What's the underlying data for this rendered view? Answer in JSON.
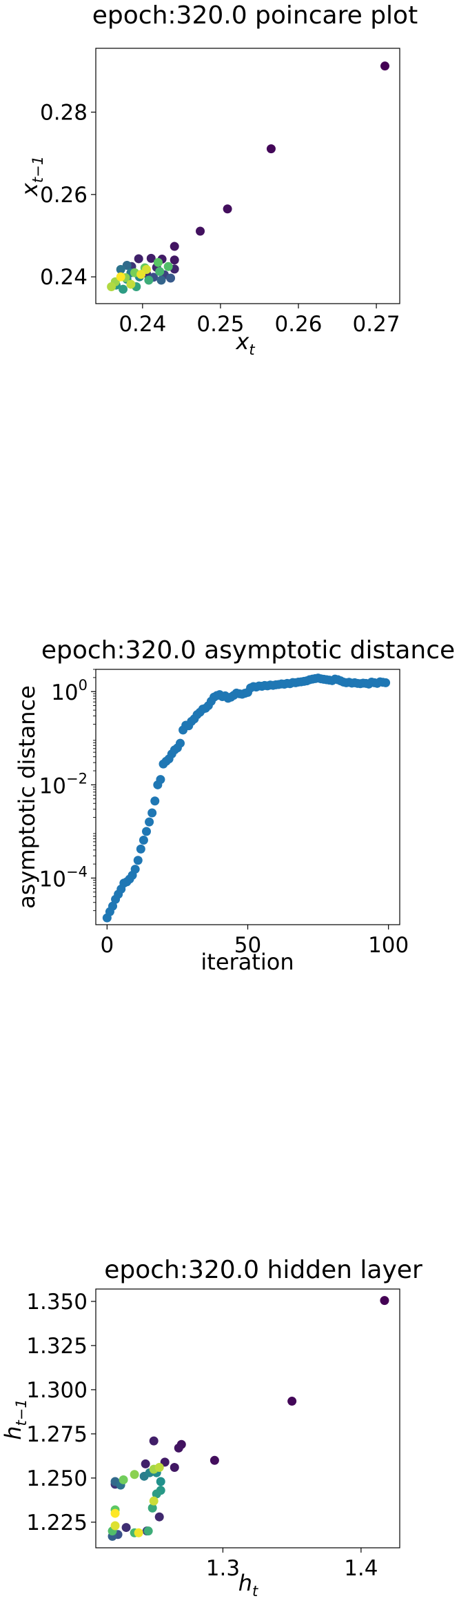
{
  "chart_data": [
    {
      "type": "scatter",
      "title": "epoch:320.0 poincare plot",
      "xlabel": "x",
      "xlabel_sub": "t",
      "ylabel": "x",
      "ylabel_sub": "t−1",
      "xlim": [
        0.234,
        0.273
      ],
      "ylim": [
        0.2335,
        0.2955
      ],
      "xticks": [
        0.24,
        0.25,
        0.26,
        0.27
      ],
      "xtick_labels": [
        "0.24",
        "0.25",
        "0.26",
        "0.27"
      ],
      "yticks": [
        0.24,
        0.26,
        0.28
      ],
      "ytick_labels": [
        "0.24",
        "0.26",
        "0.28"
      ],
      "colormap": "viridis",
      "points": [
        {
          "x": 0.2711,
          "y": 0.2912,
          "c": 0.0
        },
        {
          "x": 0.2565,
          "y": 0.2711,
          "c": 0.02
        },
        {
          "x": 0.2509,
          "y": 0.2565,
          "c": 0.04
        },
        {
          "x": 0.2474,
          "y": 0.2511,
          "c": 0.05
        },
        {
          "x": 0.2441,
          "y": 0.2474,
          "c": 0.06
        },
        {
          "x": 0.2441,
          "y": 0.2441,
          "c": 0.07
        },
        {
          "x": 0.2425,
          "y": 0.2443,
          "c": 0.08
        },
        {
          "x": 0.2411,
          "y": 0.2445,
          "c": 0.09
        },
        {
          "x": 0.2395,
          "y": 0.2444,
          "c": 0.1
        },
        {
          "x": 0.2441,
          "y": 0.2419,
          "c": 0.11
        },
        {
          "x": 0.2418,
          "y": 0.2423,
          "c": 0.12
        },
        {
          "x": 0.2405,
          "y": 0.2408,
          "c": 0.14
        },
        {
          "x": 0.2386,
          "y": 0.2425,
          "c": 0.16
        },
        {
          "x": 0.2428,
          "y": 0.2405,
          "c": 0.2
        },
        {
          "x": 0.2414,
          "y": 0.2399,
          "c": 0.24
        },
        {
          "x": 0.2436,
          "y": 0.2397,
          "c": 0.28
        },
        {
          "x": 0.2424,
          "y": 0.2392,
          "c": 0.32
        },
        {
          "x": 0.238,
          "y": 0.2428,
          "c": 0.35
        },
        {
          "x": 0.2372,
          "y": 0.2418,
          "c": 0.38
        },
        {
          "x": 0.2385,
          "y": 0.241,
          "c": 0.42
        },
        {
          "x": 0.2396,
          "y": 0.24,
          "c": 0.45
        },
        {
          "x": 0.238,
          "y": 0.2394,
          "c": 0.48
        },
        {
          "x": 0.2366,
          "y": 0.238,
          "c": 0.52
        },
        {
          "x": 0.2375,
          "y": 0.237,
          "c": 0.55
        },
        {
          "x": 0.2392,
          "y": 0.2376,
          "c": 0.58
        },
        {
          "x": 0.2408,
          "y": 0.2392,
          "c": 0.62
        },
        {
          "x": 0.2422,
          "y": 0.2413,
          "c": 0.66
        },
        {
          "x": 0.2433,
          "y": 0.2425,
          "c": 0.7
        },
        {
          "x": 0.242,
          "y": 0.2435,
          "c": 0.73
        },
        {
          "x": 0.2403,
          "y": 0.2422,
          "c": 0.76
        },
        {
          "x": 0.239,
          "y": 0.241,
          "c": 0.79
        },
        {
          "x": 0.2378,
          "y": 0.2398,
          "c": 0.82
        },
        {
          "x": 0.2365,
          "y": 0.2388,
          "c": 0.85
        },
        {
          "x": 0.236,
          "y": 0.2376,
          "c": 0.88
        },
        {
          "x": 0.2385,
          "y": 0.2382,
          "c": 0.91
        },
        {
          "x": 0.2405,
          "y": 0.2418,
          "c": 0.94
        },
        {
          "x": 0.2398,
          "y": 0.2406,
          "c": 0.97
        },
        {
          "x": 0.2372,
          "y": 0.24,
          "c": 1.0
        }
      ]
    },
    {
      "type": "scatter",
      "title": "epoch:320.0 asymptotic distance",
      "xlabel": "iteration",
      "ylabel": "asymptotic distance",
      "yscale": "log",
      "xlim": [
        -4,
        104
      ],
      "ylim": [
        1e-05,
        3.0
      ],
      "xticks": [
        0,
        50,
        100
      ],
      "xtick_labels": [
        "0",
        "50",
        "100"
      ],
      "yticks": [
        0.0001,
        0.01,
        1
      ],
      "ytick_labels": [
        {
          "base": "10",
          "exp": "−4"
        },
        {
          "base": "10",
          "exp": "−2"
        },
        {
          "base": "10",
          "exp": "0"
        }
      ],
      "x": [
        0,
        1,
        2,
        3,
        4,
        5,
        6,
        7,
        8,
        9,
        10,
        11,
        12,
        13,
        14,
        15,
        16,
        17,
        18,
        19,
        20,
        21,
        22,
        23,
        24,
        25,
        26,
        27,
        28,
        29,
        30,
        31,
        32,
        33,
        34,
        35,
        36,
        37,
        38,
        39,
        40,
        41,
        42,
        43,
        44,
        45,
        46,
        47,
        48,
        49,
        50,
        51,
        52,
        53,
        54,
        55,
        56,
        57,
        58,
        59,
        60,
        61,
        62,
        63,
        64,
        65,
        66,
        67,
        68,
        69,
        70,
        71,
        72,
        73,
        74,
        75,
        76,
        77,
        78,
        79,
        80,
        81,
        82,
        83,
        84,
        85,
        86,
        87,
        88,
        89,
        90,
        91,
        92,
        93,
        94,
        95,
        96,
        97,
        98,
        99
      ],
      "values": [
        1.4e-05,
        1.9e-05,
        2.5e-05,
        3.5e-05,
        4.5e-05,
        5.8e-05,
        7.8e-05,
        8.3e-05,
        9.5e-05,
        0.000115,
        0.000155,
        0.00024,
        0.00042,
        0.00065,
        0.001,
        0.0016,
        0.0025,
        0.0045,
        0.01,
        0.013,
        0.028,
        0.032,
        0.036,
        0.046,
        0.056,
        0.062,
        0.078,
        0.15,
        0.19,
        0.185,
        0.23,
        0.26,
        0.32,
        0.36,
        0.42,
        0.44,
        0.5,
        0.62,
        0.76,
        0.82,
        0.86,
        0.78,
        0.81,
        0.72,
        0.76,
        0.83,
        0.93,
        0.9,
        0.88,
        0.92,
        0.96,
        1.2,
        1.28,
        1.25,
        1.32,
        1.3,
        1.35,
        1.33,
        1.38,
        1.36,
        1.4,
        1.42,
        1.46,
        1.44,
        1.5,
        1.48,
        1.56,
        1.55,
        1.6,
        1.62,
        1.66,
        1.7,
        1.8,
        1.85,
        1.9,
        1.95,
        1.88,
        1.84,
        1.8,
        1.76,
        1.72,
        1.85,
        1.8,
        1.7,
        1.6,
        1.55,
        1.58,
        1.52,
        1.55,
        1.5,
        1.48,
        1.52,
        1.5,
        1.45,
        1.6,
        1.55,
        1.5,
        1.62,
        1.58,
        1.55
      ],
      "color": "#1f77b4"
    },
    {
      "type": "scatter",
      "title": "epoch:320.0 hidden layer",
      "xlabel": "h",
      "xlabel_sub": "t",
      "ylabel": "h",
      "ylabel_sub": "t−1",
      "xlim": [
        1.208,
        1.428
      ],
      "ylim": [
        1.2105,
        1.357
      ],
      "xticks": [
        1.3,
        1.4
      ],
      "xtick_labels": [
        "1.3",
        "1.4"
      ],
      "yticks": [
        1.225,
        1.25,
        1.275,
        1.3,
        1.325,
        1.35
      ],
      "ytick_labels": [
        "1.225",
        "1.250",
        "1.275",
        "1.300",
        "1.325",
        "1.350"
      ],
      "colormap": "viridis",
      "points": [
        {
          "x": 1.417,
          "y": 1.3505,
          "c": 0.0
        },
        {
          "x": 1.35,
          "y": 1.2935,
          "c": 0.02
        },
        {
          "x": 1.294,
          "y": 1.26,
          "c": 0.04
        },
        {
          "x": 1.27,
          "y": 1.269,
          "c": 0.05
        },
        {
          "x": 1.268,
          "y": 1.267,
          "c": 0.06
        },
        {
          "x": 1.265,
          "y": 1.256,
          "c": 0.07
        },
        {
          "x": 1.258,
          "y": 1.259,
          "c": 0.08
        },
        {
          "x": 1.25,
          "y": 1.271,
          "c": 0.09
        },
        {
          "x": 1.244,
          "y": 1.258,
          "c": 0.1
        },
        {
          "x": 1.254,
          "y": 1.228,
          "c": 0.12
        },
        {
          "x": 1.23,
          "y": 1.222,
          "c": 0.14
        },
        {
          "x": 1.222,
          "y": 1.2465,
          "c": 0.16
        },
        {
          "x": 1.245,
          "y": 1.22,
          "c": 0.2
        },
        {
          "x": 1.224,
          "y": 1.218,
          "c": 0.25
        },
        {
          "x": 1.22,
          "y": 1.217,
          "c": 0.3
        },
        {
          "x": 1.222,
          "y": 1.248,
          "c": 0.34
        },
        {
          "x": 1.226,
          "y": 1.246,
          "c": 0.38
        },
        {
          "x": 1.243,
          "y": 1.251,
          "c": 0.42
        },
        {
          "x": 1.247,
          "y": 1.253,
          "c": 0.45
        },
        {
          "x": 1.252,
          "y": 1.253,
          "c": 0.48
        },
        {
          "x": 1.255,
          "y": 1.248,
          "c": 0.5
        },
        {
          "x": 1.255,
          "y": 1.243,
          "c": 0.53
        },
        {
          "x": 1.252,
          "y": 1.241,
          "c": 0.55
        },
        {
          "x": 1.249,
          "y": 1.233,
          "c": 0.6
        },
        {
          "x": 1.246,
          "y": 1.22,
          "c": 0.62
        },
        {
          "x": 1.236,
          "y": 1.219,
          "c": 0.66
        },
        {
          "x": 1.22,
          "y": 1.22,
          "c": 0.7
        },
        {
          "x": 1.222,
          "y": 1.232,
          "c": 0.74
        },
        {
          "x": 1.228,
          "y": 1.249,
          "c": 0.78
        },
        {
          "x": 1.236,
          "y": 1.252,
          "c": 0.82
        },
        {
          "x": 1.25,
          "y": 1.255,
          "c": 0.86
        },
        {
          "x": 1.254,
          "y": 1.256,
          "c": 0.9
        },
        {
          "x": 1.25,
          "y": 1.237,
          "c": 0.92
        },
        {
          "x": 1.222,
          "y": 1.223,
          "c": 0.95
        },
        {
          "x": 1.239,
          "y": 1.219,
          "c": 0.98
        },
        {
          "x": 1.222,
          "y": 1.23,
          "c": 1.0
        }
      ]
    }
  ]
}
